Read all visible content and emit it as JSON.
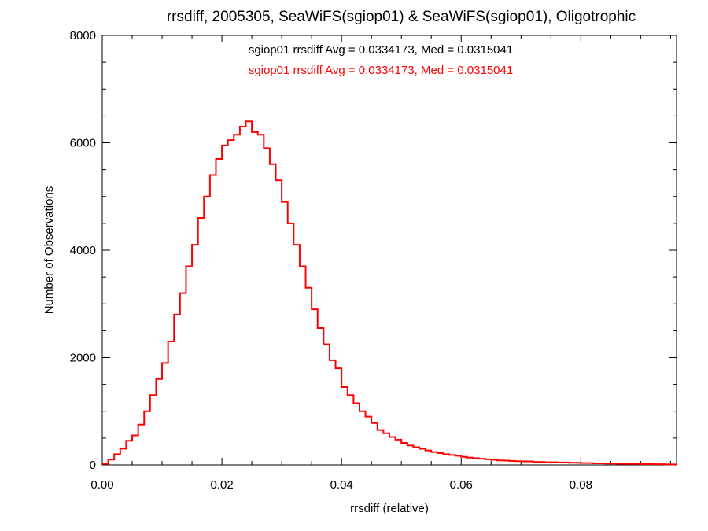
{
  "chart_data": {
    "type": "line",
    "title": "rrsdiff, 2005305, SeaWiFS(sgiop01) & SeaWiFS(sgiop01), Oligotrophic",
    "xlabel": "rrsdiff (relative)",
    "ylabel": "Number of Observations",
    "xlim": [
      0.0,
      0.096
    ],
    "ylim": [
      0,
      8000
    ],
    "x_ticks": [
      {
        "value": 0.0,
        "label": "0.00"
      },
      {
        "value": 0.02,
        "label": "0.02"
      },
      {
        "value": 0.04,
        "label": "0.04"
      },
      {
        "value": 0.06,
        "label": "0.06"
      },
      {
        "value": 0.08,
        "label": "0.08"
      }
    ],
    "y_ticks": [
      {
        "value": 0,
        "label": "0"
      },
      {
        "value": 2000,
        "label": "2000"
      },
      {
        "value": 4000,
        "label": "4000"
      },
      {
        "value": 6000,
        "label": "6000"
      },
      {
        "value": 8000,
        "label": "8000"
      }
    ],
    "annotations": [
      {
        "text": "sgiop01 rrsdiff Avg = 0.0334173, Med = 0.0315041",
        "color": "#000000"
      },
      {
        "text": "sgiop01 rrsdiff Avg = 0.0334173, Med = 0.0315041",
        "color": "#ff0000"
      }
    ],
    "series": [
      {
        "color": "#ff0000",
        "step": true,
        "x": [
          0.0,
          0.001,
          0.002,
          0.003,
          0.004,
          0.005,
          0.006,
          0.007,
          0.008,
          0.009,
          0.01,
          0.011,
          0.012,
          0.013,
          0.014,
          0.015,
          0.016,
          0.017,
          0.018,
          0.019,
          0.02,
          0.021,
          0.022,
          0.023,
          0.024,
          0.025,
          0.026,
          0.027,
          0.028,
          0.029,
          0.03,
          0.031,
          0.032,
          0.033,
          0.034,
          0.035,
          0.036,
          0.037,
          0.038,
          0.039,
          0.04,
          0.041,
          0.042,
          0.043,
          0.044,
          0.045,
          0.046,
          0.047,
          0.048,
          0.049,
          0.05,
          0.051,
          0.052,
          0.053,
          0.054,
          0.055,
          0.056,
          0.057,
          0.058,
          0.059,
          0.06,
          0.061,
          0.062,
          0.063,
          0.064,
          0.065,
          0.066,
          0.067,
          0.068,
          0.069,
          0.07,
          0.072,
          0.074,
          0.076,
          0.078,
          0.08,
          0.082,
          0.084,
          0.086,
          0.088,
          0.09,
          0.092,
          0.094,
          0.096
        ],
        "values": [
          20,
          100,
          200,
          300,
          450,
          550,
          750,
          1000,
          1300,
          1600,
          1900,
          2300,
          2800,
          3200,
          3700,
          4100,
          4600,
          5000,
          5400,
          5700,
          5950,
          6050,
          6150,
          6300,
          6400,
          6200,
          6150,
          5900,
          5600,
          5300,
          4900,
          4500,
          4100,
          3700,
          3300,
          2900,
          2550,
          2250,
          1950,
          1800,
          1450,
          1300,
          1150,
          1000,
          900,
          780,
          650,
          590,
          520,
          470,
          410,
          360,
          330,
          300,
          270,
          240,
          220,
          200,
          185,
          170,
          150,
          135,
          125,
          115,
          105,
          95,
          85,
          80,
          75,
          70,
          65,
          55,
          50,
          45,
          40,
          35,
          30,
          25,
          20,
          18,
          15,
          12,
          10,
          8
        ]
      }
    ]
  }
}
